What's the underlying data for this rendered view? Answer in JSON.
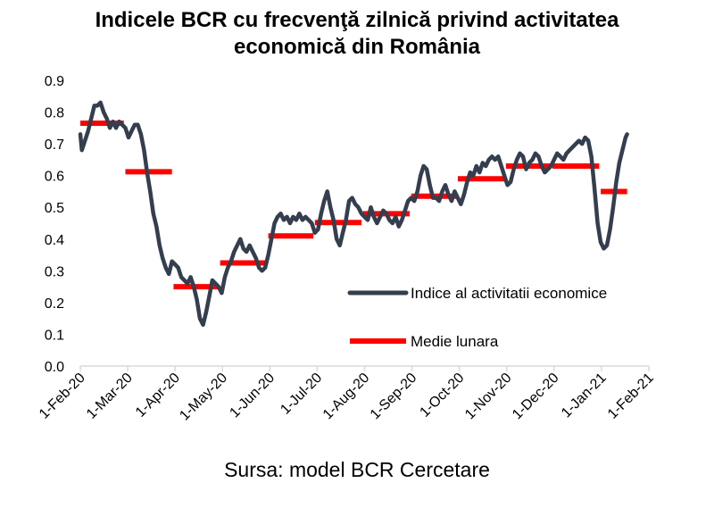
{
  "title_line1": "Indicele BCR cu frecvenţă zilnică privind activitatea",
  "title_line2": "economică din România",
  "source": "Sursa: model BCR Cercetare",
  "colors": {
    "index_line": "#343e4e",
    "monthly_avg": "#ff0000",
    "axis": "#d9d9d9"
  },
  "chart_data": {
    "type": "line",
    "title": "Indicele BCR cu frecvenţă zilnică privind activitatea economică din România",
    "ylim": [
      0,
      0.9
    ],
    "yticks": [
      "0.0",
      "0.1",
      "0.2",
      "0.3",
      "0.4",
      "0.5",
      "0.6",
      "0.7",
      "0.8",
      "0.9"
    ],
    "xlim": [
      "2020-02-01",
      "2021-02-01"
    ],
    "xticks": [
      "1-Feb-20",
      "1-Mar-20",
      "1-Apr-20",
      "1-May-20",
      "1-Jun-20",
      "1-Jul-20",
      "1-Aug-20",
      "1-Sep-20",
      "1-Oct-20",
      "1-Nov-20",
      "1-Dec-20",
      "1-Jan-21",
      "1-Feb-21"
    ],
    "grid": false,
    "legend_position": "right",
    "series": [
      {
        "name": "Indice al activitatii economice",
        "type": "line",
        "points": [
          [
            "2020-02-01",
            0.73
          ],
          [
            "2020-02-02",
            0.68
          ],
          [
            "2020-02-04",
            0.71
          ],
          [
            "2020-02-06",
            0.74
          ],
          [
            "2020-02-08",
            0.78
          ],
          [
            "2020-02-10",
            0.82
          ],
          [
            "2020-02-12",
            0.82
          ],
          [
            "2020-02-14",
            0.83
          ],
          [
            "2020-02-16",
            0.8
          ],
          [
            "2020-02-18",
            0.78
          ],
          [
            "2020-02-20",
            0.75
          ],
          [
            "2020-02-22",
            0.77
          ],
          [
            "2020-02-24",
            0.75
          ],
          [
            "2020-02-26",
            0.77
          ],
          [
            "2020-02-28",
            0.76
          ],
          [
            "2020-03-01",
            0.75
          ],
          [
            "2020-03-03",
            0.72
          ],
          [
            "2020-03-05",
            0.74
          ],
          [
            "2020-03-07",
            0.76
          ],
          [
            "2020-03-09",
            0.76
          ],
          [
            "2020-03-11",
            0.73
          ],
          [
            "2020-03-13",
            0.68
          ],
          [
            "2020-03-15",
            0.61
          ],
          [
            "2020-03-17",
            0.55
          ],
          [
            "2020-03-19",
            0.48
          ],
          [
            "2020-03-21",
            0.44
          ],
          [
            "2020-03-23",
            0.38
          ],
          [
            "2020-03-25",
            0.34
          ],
          [
            "2020-03-27",
            0.31
          ],
          [
            "2020-03-29",
            0.29
          ],
          [
            "2020-03-31",
            0.33
          ],
          [
            "2020-04-02",
            0.32
          ],
          [
            "2020-04-04",
            0.31
          ],
          [
            "2020-04-06",
            0.28
          ],
          [
            "2020-04-08",
            0.27
          ],
          [
            "2020-04-10",
            0.26
          ],
          [
            "2020-04-12",
            0.28
          ],
          [
            "2020-04-14",
            0.25
          ],
          [
            "2020-04-16",
            0.21
          ],
          [
            "2020-04-18",
            0.15
          ],
          [
            "2020-04-20",
            0.13
          ],
          [
            "2020-04-22",
            0.17
          ],
          [
            "2020-04-24",
            0.22
          ],
          [
            "2020-04-26",
            0.27
          ],
          [
            "2020-04-28",
            0.26
          ],
          [
            "2020-04-30",
            0.25
          ],
          [
            "2020-05-02",
            0.23
          ],
          [
            "2020-05-04",
            0.28
          ],
          [
            "2020-05-06",
            0.31
          ],
          [
            "2020-05-08",
            0.33
          ],
          [
            "2020-05-10",
            0.36
          ],
          [
            "2020-05-12",
            0.38
          ],
          [
            "2020-05-14",
            0.4
          ],
          [
            "2020-05-16",
            0.37
          ],
          [
            "2020-05-18",
            0.36
          ],
          [
            "2020-05-20",
            0.38
          ],
          [
            "2020-05-22",
            0.36
          ],
          [
            "2020-05-24",
            0.34
          ],
          [
            "2020-05-26",
            0.31
          ],
          [
            "2020-05-28",
            0.3
          ],
          [
            "2020-05-30",
            0.31
          ],
          [
            "2020-06-01",
            0.35
          ],
          [
            "2020-06-03",
            0.4
          ],
          [
            "2020-06-05",
            0.45
          ],
          [
            "2020-06-07",
            0.47
          ],
          [
            "2020-06-09",
            0.48
          ],
          [
            "2020-06-11",
            0.46
          ],
          [
            "2020-06-13",
            0.47
          ],
          [
            "2020-06-15",
            0.45
          ],
          [
            "2020-06-17",
            0.47
          ],
          [
            "2020-06-19",
            0.46
          ],
          [
            "2020-06-21",
            0.48
          ],
          [
            "2020-06-23",
            0.46
          ],
          [
            "2020-06-25",
            0.47
          ],
          [
            "2020-06-27",
            0.46
          ],
          [
            "2020-06-29",
            0.45
          ],
          [
            "2020-07-01",
            0.42
          ],
          [
            "2020-07-03",
            0.43
          ],
          [
            "2020-07-05",
            0.48
          ],
          [
            "2020-07-07",
            0.52
          ],
          [
            "2020-07-09",
            0.55
          ],
          [
            "2020-07-11",
            0.5
          ],
          [
            "2020-07-13",
            0.46
          ],
          [
            "2020-07-15",
            0.4
          ],
          [
            "2020-07-17",
            0.38
          ],
          [
            "2020-07-19",
            0.42
          ],
          [
            "2020-07-21",
            0.46
          ],
          [
            "2020-07-23",
            0.52
          ],
          [
            "2020-07-25",
            0.53
          ],
          [
            "2020-07-27",
            0.51
          ],
          [
            "2020-07-29",
            0.5
          ],
          [
            "2020-07-31",
            0.48
          ],
          [
            "2020-08-02",
            0.47
          ],
          [
            "2020-08-04",
            0.46
          ],
          [
            "2020-08-06",
            0.5
          ],
          [
            "2020-08-08",
            0.47
          ],
          [
            "2020-08-10",
            0.45
          ],
          [
            "2020-08-12",
            0.47
          ],
          [
            "2020-08-14",
            0.49
          ],
          [
            "2020-08-16",
            0.48
          ],
          [
            "2020-08-18",
            0.46
          ],
          [
            "2020-08-20",
            0.45
          ],
          [
            "2020-08-22",
            0.47
          ],
          [
            "2020-08-24",
            0.44
          ],
          [
            "2020-08-26",
            0.46
          ],
          [
            "2020-08-28",
            0.49
          ],
          [
            "2020-08-30",
            0.52
          ],
          [
            "2020-09-01",
            0.53
          ],
          [
            "2020-09-03",
            0.52
          ],
          [
            "2020-09-05",
            0.55
          ],
          [
            "2020-09-07",
            0.6
          ],
          [
            "2020-09-09",
            0.63
          ],
          [
            "2020-09-11",
            0.62
          ],
          [
            "2020-09-13",
            0.57
          ],
          [
            "2020-09-15",
            0.53
          ],
          [
            "2020-09-17",
            0.53
          ],
          [
            "2020-09-19",
            0.52
          ],
          [
            "2020-09-21",
            0.55
          ],
          [
            "2020-09-23",
            0.57
          ],
          [
            "2020-09-25",
            0.54
          ],
          [
            "2020-09-27",
            0.52
          ],
          [
            "2020-09-29",
            0.55
          ],
          [
            "2020-10-01",
            0.53
          ],
          [
            "2020-10-03",
            0.51
          ],
          [
            "2020-10-05",
            0.54
          ],
          [
            "2020-10-07",
            0.58
          ],
          [
            "2020-10-09",
            0.61
          ],
          [
            "2020-10-11",
            0.6
          ],
          [
            "2020-10-13",
            0.63
          ],
          [
            "2020-10-15",
            0.61
          ],
          [
            "2020-10-17",
            0.64
          ],
          [
            "2020-10-19",
            0.63
          ],
          [
            "2020-10-21",
            0.65
          ],
          [
            "2020-10-23",
            0.66
          ],
          [
            "2020-10-25",
            0.65
          ],
          [
            "2020-10-27",
            0.66
          ],
          [
            "2020-10-29",
            0.63
          ],
          [
            "2020-10-31",
            0.6
          ],
          [
            "2020-11-02",
            0.57
          ],
          [
            "2020-11-04",
            0.58
          ],
          [
            "2020-11-06",
            0.62
          ],
          [
            "2020-11-08",
            0.65
          ],
          [
            "2020-11-10",
            0.67
          ],
          [
            "2020-11-12",
            0.66
          ],
          [
            "2020-11-14",
            0.62
          ],
          [
            "2020-11-16",
            0.64
          ],
          [
            "2020-11-18",
            0.65
          ],
          [
            "2020-11-20",
            0.67
          ],
          [
            "2020-11-22",
            0.66
          ],
          [
            "2020-11-24",
            0.63
          ],
          [
            "2020-11-26",
            0.61
          ],
          [
            "2020-11-28",
            0.62
          ],
          [
            "2020-11-30",
            0.63
          ],
          [
            "2020-12-02",
            0.65
          ],
          [
            "2020-12-04",
            0.67
          ],
          [
            "2020-12-06",
            0.66
          ],
          [
            "2020-12-08",
            0.65
          ],
          [
            "2020-12-10",
            0.67
          ],
          [
            "2020-12-12",
            0.68
          ],
          [
            "2020-12-14",
            0.69
          ],
          [
            "2020-12-16",
            0.7
          ],
          [
            "2020-12-18",
            0.71
          ],
          [
            "2020-12-20",
            0.7
          ],
          [
            "2020-12-22",
            0.72
          ],
          [
            "2020-12-24",
            0.71
          ],
          [
            "2020-12-26",
            0.66
          ],
          [
            "2020-12-28",
            0.56
          ],
          [
            "2020-12-30",
            0.45
          ],
          [
            "2021-01-01",
            0.39
          ],
          [
            "2021-01-03",
            0.37
          ],
          [
            "2021-01-05",
            0.38
          ],
          [
            "2021-01-07",
            0.43
          ],
          [
            "2021-01-09",
            0.5
          ],
          [
            "2021-01-11",
            0.58
          ],
          [
            "2021-01-13",
            0.64
          ],
          [
            "2021-01-15",
            0.68
          ],
          [
            "2021-01-17",
            0.72
          ],
          [
            "2021-01-18",
            0.73
          ]
        ]
      },
      {
        "name": "Medie lunara",
        "type": "step",
        "segments": [
          {
            "start": "2020-02-01",
            "end": "2020-02-29",
            "value": 0.765
          },
          {
            "start": "2020-03-01",
            "end": "2020-03-31",
            "value": 0.612
          },
          {
            "start": "2020-04-01",
            "end": "2020-04-30",
            "value": 0.25
          },
          {
            "start": "2020-05-01",
            "end": "2020-05-31",
            "value": 0.325
          },
          {
            "start": "2020-06-01",
            "end": "2020-06-30",
            "value": 0.41
          },
          {
            "start": "2020-07-01",
            "end": "2020-07-31",
            "value": 0.452
          },
          {
            "start": "2020-08-01",
            "end": "2020-08-31",
            "value": 0.48
          },
          {
            "start": "2020-09-01",
            "end": "2020-09-30",
            "value": 0.535
          },
          {
            "start": "2020-10-01",
            "end": "2020-10-31",
            "value": 0.59
          },
          {
            "start": "2020-11-01",
            "end": "2020-11-30",
            "value": 0.63
          },
          {
            "start": "2020-12-01",
            "end": "2020-12-31",
            "value": 0.63
          },
          {
            "start": "2021-01-01",
            "end": "2021-01-18",
            "value": 0.55
          }
        ]
      }
    ]
  }
}
